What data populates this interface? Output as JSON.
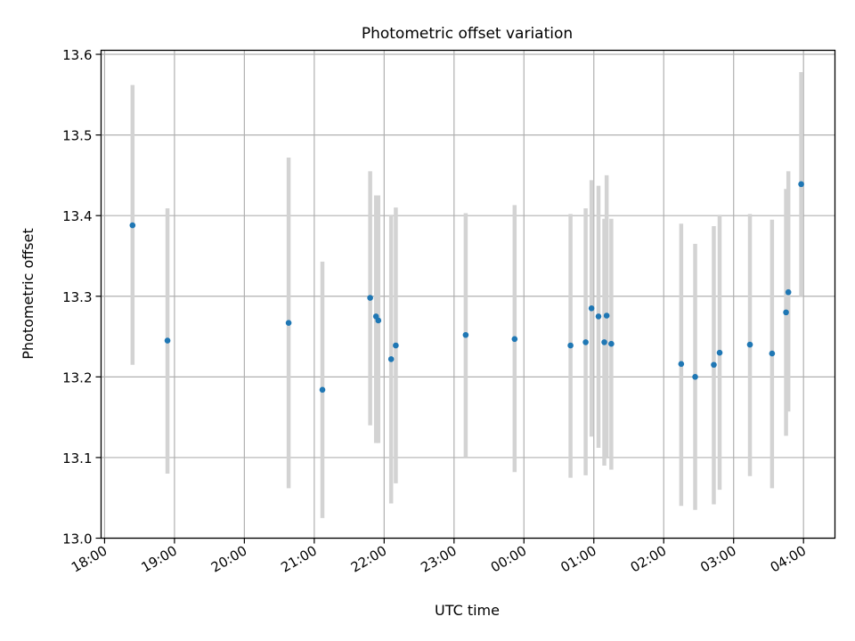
{
  "chart_data": {
    "type": "scatter",
    "title": "Photometric offset variation",
    "xlabel": "UTC time",
    "ylabel": "Photometric offset",
    "x_axis": {
      "kind": "time",
      "range": [
        "17:57",
        "04:27"
      ],
      "ticks": [
        "18:00",
        "19:00",
        "20:00",
        "21:00",
        "22:00",
        "23:00",
        "00:00",
        "01:00",
        "02:00",
        "03:00",
        "04:00"
      ]
    },
    "y_axis": {
      "range": [
        13.0,
        13.605
      ],
      "ticks": [
        "13.0",
        "13.1",
        "13.2",
        "13.3",
        "13.4",
        "13.5",
        "13.6"
      ]
    },
    "grid": true,
    "colors": {
      "point": "#1f77b4",
      "error_bar": "#d3d3d3",
      "grid": "#b0b0b0"
    },
    "series": [
      {
        "points": [
          {
            "time": "18:24",
            "y": 13.388,
            "err_low": 13.215,
            "err_high": 13.562
          },
          {
            "time": "18:54",
            "y": 13.245,
            "err_low": 13.08,
            "err_high": 13.409
          },
          {
            "time": "20:38",
            "y": 13.267,
            "err_low": 13.062,
            "err_high": 13.472
          },
          {
            "time": "21:07",
            "y": 13.184,
            "err_low": 13.025,
            "err_high": 13.343
          },
          {
            "time": "21:48",
            "y": 13.298,
            "err_low": 13.14,
            "err_high": 13.455
          },
          {
            "time": "21:53",
            "y": 13.275,
            "err_low": 13.118,
            "err_high": 13.425
          },
          {
            "time": "21:55",
            "y": 13.27,
            "err_low": 13.118,
            "err_high": 13.425
          },
          {
            "time": "22:06",
            "y": 13.222,
            "err_low": 13.043,
            "err_high": 13.401
          },
          {
            "time": "22:10",
            "y": 13.239,
            "err_low": 13.068,
            "err_high": 13.41
          },
          {
            "time": "23:10",
            "y": 13.252,
            "err_low": 13.1,
            "err_high": 13.403
          },
          {
            "time": "23:52",
            "y": 13.247,
            "err_low": 13.082,
            "err_high": 13.413
          },
          {
            "time": "00:40",
            "y": 13.239,
            "err_low": 13.075,
            "err_high": 13.402
          },
          {
            "time": "00:53",
            "y": 13.243,
            "err_low": 13.078,
            "err_high": 13.409
          },
          {
            "time": "00:58",
            "y": 13.285,
            "err_low": 13.126,
            "err_high": 13.444
          },
          {
            "time": "01:04",
            "y": 13.275,
            "err_low": 13.112,
            "err_high": 13.437
          },
          {
            "time": "01:09",
            "y": 13.243,
            "err_low": 13.09,
            "err_high": 13.396
          },
          {
            "time": "01:11",
            "y": 13.276,
            "err_low": 13.101,
            "err_high": 13.45
          },
          {
            "time": "01:15",
            "y": 13.241,
            "err_low": 13.085,
            "err_high": 13.396
          },
          {
            "time": "02:15",
            "y": 13.216,
            "err_low": 13.04,
            "err_high": 13.39
          },
          {
            "time": "02:27",
            "y": 13.2,
            "err_low": 13.035,
            "err_high": 13.365
          },
          {
            "time": "02:43",
            "y": 13.215,
            "err_low": 13.042,
            "err_high": 13.387
          },
          {
            "time": "02:48",
            "y": 13.23,
            "err_low": 13.06,
            "err_high": 13.401
          },
          {
            "time": "03:14",
            "y": 13.24,
            "err_low": 13.077,
            "err_high": 13.402
          },
          {
            "time": "03:33",
            "y": 13.229,
            "err_low": 13.062,
            "err_high": 13.395
          },
          {
            "time": "03:45",
            "y": 13.28,
            "err_low": 13.127,
            "err_high": 13.433
          },
          {
            "time": "03:47",
            "y": 13.305,
            "err_low": 13.157,
            "err_high": 13.455
          },
          {
            "time": "03:58",
            "y": 13.439,
            "err_low": 13.3,
            "err_high": 13.578
          }
        ]
      }
    ]
  }
}
